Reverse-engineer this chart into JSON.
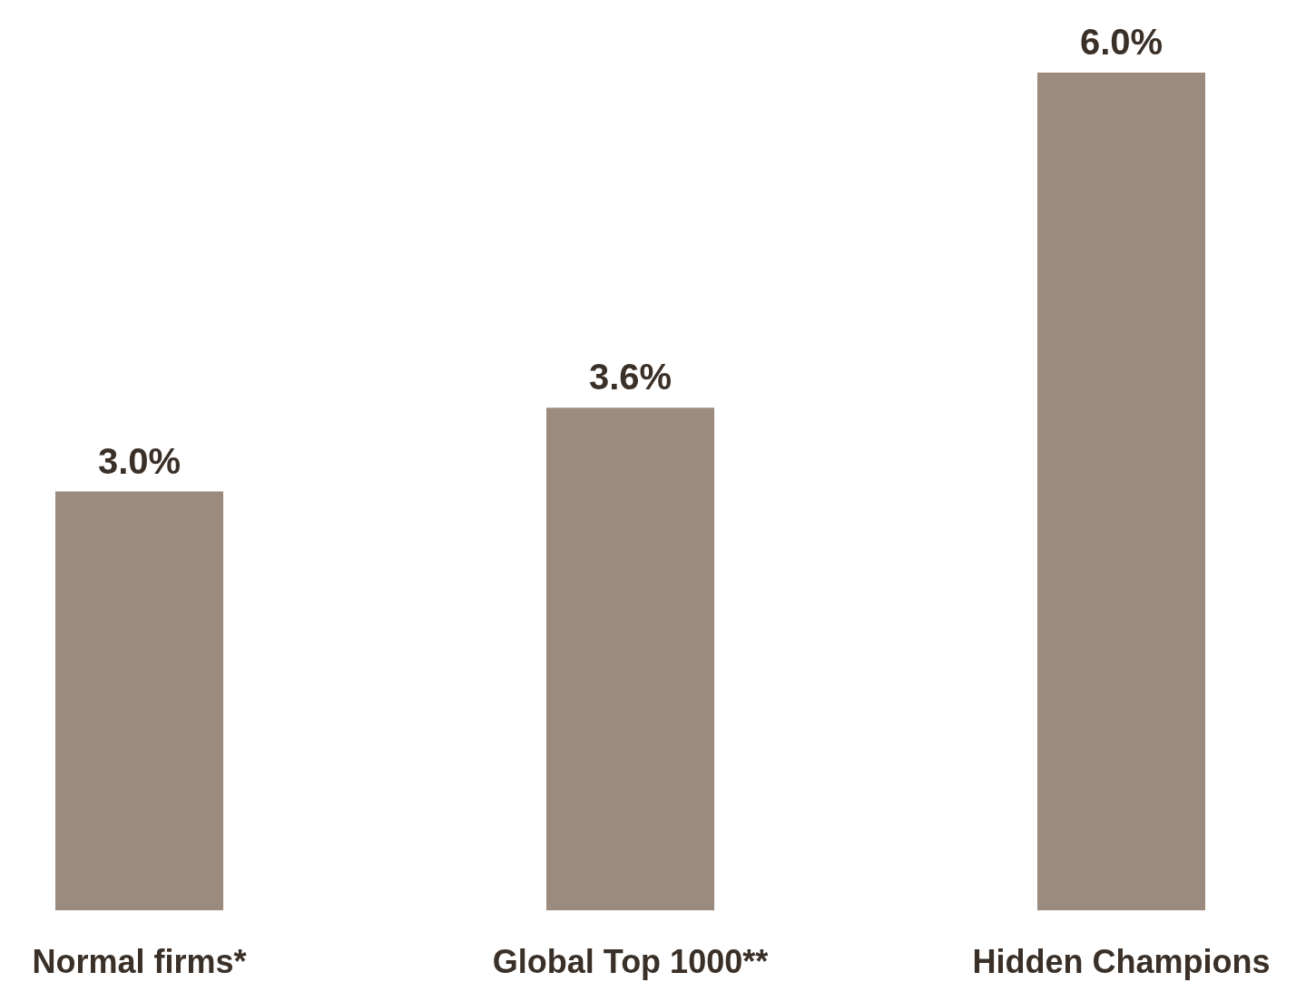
{
  "chart_data": {
    "type": "bar",
    "categories": [
      "Normal firms*",
      "Global Top 1000**",
      "Hidden Champions"
    ],
    "values": [
      3.0,
      3.6,
      6.0
    ],
    "value_labels": [
      "3.0%",
      "3.6%",
      "6.0%"
    ],
    "color": "#9b8b7e"
  }
}
